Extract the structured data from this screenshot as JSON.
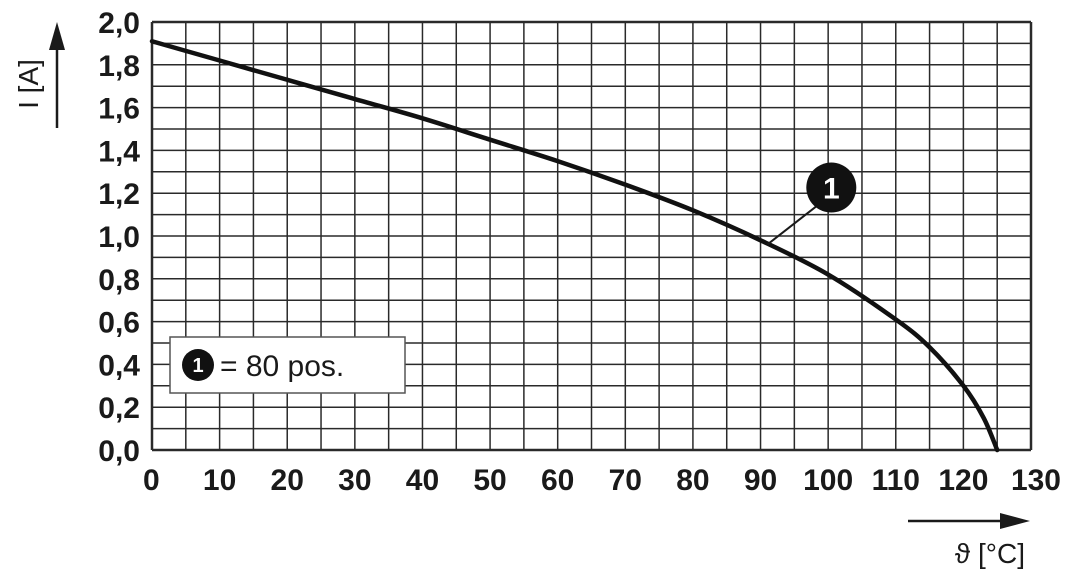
{
  "chart_data": {
    "type": "line",
    "xlabel": "ϑ [°C]",
    "ylabel": "I [A]",
    "xlim": [
      0,
      130
    ],
    "ylim": [
      0,
      2.0
    ],
    "x_tick_labels": [
      "0",
      "10",
      "20",
      "30",
      "40",
      "50",
      "60",
      "70",
      "80",
      "90",
      "100",
      "110",
      "120",
      "130"
    ],
    "y_tick_labels": [
      "0,0",
      "0,2",
      "0,4",
      "0,6",
      "0,8",
      "1,0",
      "1,2",
      "1,4",
      "1,6",
      "1,8",
      "2,0"
    ],
    "grid": true,
    "series": [
      {
        "marker": "1",
        "x": [
          0,
          10,
          20,
          30,
          40,
          50,
          60,
          70,
          80,
          90,
          100,
          110,
          115,
          120,
          123,
          125
        ],
        "y": [
          1.91,
          1.82,
          1.73,
          1.64,
          1.55,
          1.45,
          1.35,
          1.24,
          1.12,
          0.98,
          0.82,
          0.61,
          0.48,
          0.3,
          0.15,
          0.0
        ]
      }
    ],
    "legend": {
      "position": "bottom-left",
      "marker": "1",
      "text": "= 80 pos."
    },
    "annotation": {
      "label": "1",
      "points_to_x": 91,
      "points_to_y": 0.96
    },
    "colors": {
      "line": "#111111",
      "grid": "#2a2a2a",
      "text": "#1a1a1a",
      "marker_fill": "#111111"
    }
  }
}
